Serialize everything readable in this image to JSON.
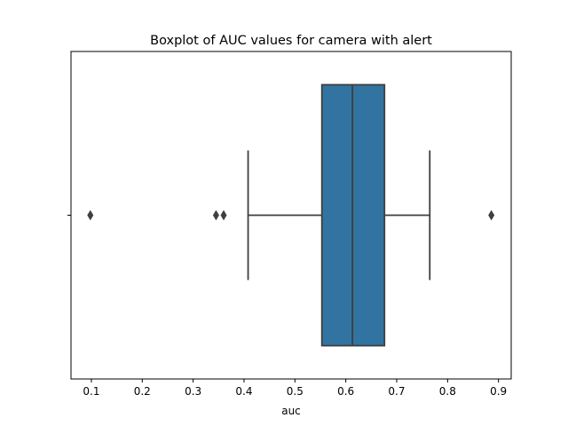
{
  "chart_data": {
    "type": "box",
    "title": "Boxplot of AUC values for camera with alert",
    "xlabel": "auc",
    "ylabel": "",
    "xlim": [
      0.06,
      0.925
    ],
    "x_ticks": [
      0.1,
      0.2,
      0.3,
      0.4,
      0.5,
      0.6,
      0.7,
      0.8,
      0.9
    ],
    "x_tick_labels": [
      "0.1",
      "0.2",
      "0.3",
      "0.4",
      "0.5",
      "0.6",
      "0.7",
      "0.8",
      "0.9"
    ],
    "grid": false,
    "orientation": "horizontal",
    "box": {
      "whisker_low": 0.408,
      "q1": 0.553,
      "median": 0.613,
      "q3": 0.676,
      "whisker_high": 0.765
    },
    "outliers": [
      0.098,
      0.345,
      0.36,
      0.886
    ],
    "colors": {
      "box_fill": "#3274a1",
      "line": "#3f3f3f",
      "axis": "#000000"
    }
  }
}
